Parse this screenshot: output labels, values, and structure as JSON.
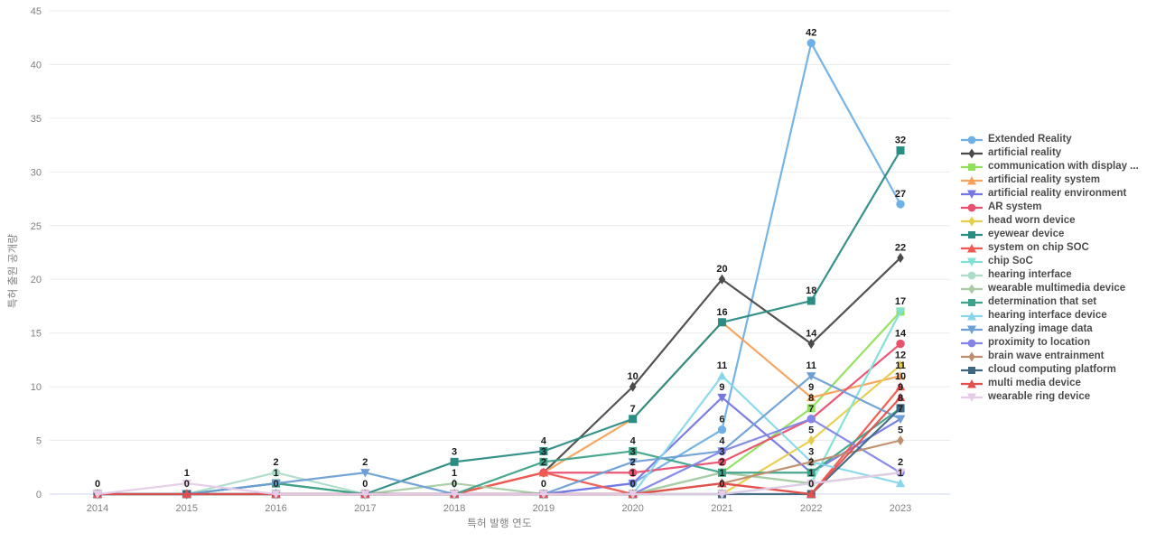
{
  "chart_data": {
    "type": "line",
    "title": "",
    "xlabel": "특허 발행 연도",
    "ylabel": "특허 출원 공개량",
    "x": [
      2014,
      2015,
      2016,
      2017,
      2018,
      2019,
      2020,
      2021,
      2022,
      2023
    ],
    "ylim": [
      0,
      45
    ],
    "y_ticks": [
      0,
      5,
      10,
      15,
      20,
      25,
      30,
      35,
      40,
      45
    ],
    "grid": true,
    "legend_position": "right",
    "point_labels": true,
    "series": [
      {
        "name": "Extended Reality",
        "color": "#6fb0e6",
        "marker": "circle",
        "values": [
          0,
          0,
          0,
          0,
          0,
          0,
          1,
          6,
          42,
          27
        ]
      },
      {
        "name": "artificial reality",
        "color": "#4a4a4a",
        "marker": "diamond",
        "values": [
          0,
          0,
          0,
          0,
          0,
          2,
          10,
          20,
          14,
          22
        ]
      },
      {
        "name": "communication with display ...",
        "color": "#90e05b",
        "marker": "square",
        "values": [
          0,
          0,
          0,
          0,
          0,
          0,
          0,
          2,
          8,
          17
        ]
      },
      {
        "name": "artificial reality system",
        "color": "#f8a25b",
        "marker": "triangle-up",
        "values": [
          0,
          0,
          0,
          0,
          0,
          2,
          7,
          16,
          9,
          11
        ]
      },
      {
        "name": "artificial reality environment",
        "color": "#7577e3",
        "marker": "triangle-down",
        "values": [
          0,
          0,
          0,
          0,
          0,
          0,
          1,
          9,
          2,
          7
        ]
      },
      {
        "name": "AR system",
        "color": "#e8506e",
        "marker": "circle",
        "values": [
          0,
          0,
          0,
          0,
          0,
          2,
          2,
          3,
          7,
          14
        ]
      },
      {
        "name": "head worn device",
        "color": "#e7cd4c",
        "marker": "diamond",
        "values": [
          0,
          0,
          0,
          0,
          0,
          0,
          0,
          0,
          5,
          12
        ]
      },
      {
        "name": "eyewear device",
        "color": "#2b8c84",
        "marker": "square",
        "values": [
          0,
          0,
          1,
          0,
          3,
          4,
          7,
          16,
          18,
          32
        ]
      },
      {
        "name": "system on chip SOC",
        "color": "#f05a50",
        "marker": "triangle-up",
        "values": [
          0,
          0,
          0,
          0,
          0,
          2,
          0,
          1,
          0,
          10
        ]
      },
      {
        "name": "chip SoC",
        "color": "#80e0d3",
        "marker": "triangle-down",
        "values": [
          0,
          0,
          0,
          0,
          0,
          0,
          0,
          0,
          1,
          17
        ]
      },
      {
        "name": "hearing interface",
        "color": "#acdcc8",
        "marker": "circle",
        "values": [
          0,
          0,
          2,
          0,
          0,
          0,
          0,
          2,
          1,
          2
        ]
      },
      {
        "name": "wearable multimedia device",
        "color": "#a8cba4",
        "marker": "diamond",
        "values": [
          0,
          0,
          0,
          0,
          1,
          0,
          0,
          2,
          1,
          2
        ]
      },
      {
        "name": "determination that set",
        "color": "#3fa389",
        "marker": "square",
        "values": [
          0,
          0,
          1,
          0,
          0,
          3,
          4,
          2,
          2,
          8
        ]
      },
      {
        "name": "hearing interface device",
        "color": "#87d7ec",
        "marker": "triangle-up",
        "values": [
          0,
          0,
          0,
          0,
          0,
          0,
          0,
          11,
          3,
          1
        ]
      },
      {
        "name": "analyzing image data",
        "color": "#6e9fd4",
        "marker": "triangle-down",
        "values": [
          0,
          0,
          1,
          2,
          0,
          0,
          3,
          4,
          11,
          7
        ]
      },
      {
        "name": "proximity to location",
        "color": "#8285e6",
        "marker": "circle",
        "values": [
          0,
          0,
          0,
          0,
          0,
          0,
          0,
          4,
          7,
          2
        ]
      },
      {
        "name": "brain wave entrainment",
        "color": "#be8e6f",
        "marker": "diamond",
        "values": [
          0,
          0,
          0,
          0,
          0,
          0,
          0,
          1,
          3,
          5
        ]
      },
      {
        "name": "cloud computing platform",
        "color": "#3d6780",
        "marker": "square",
        "values": [
          0,
          0,
          0,
          0,
          0,
          0,
          0,
          0,
          0,
          8
        ]
      },
      {
        "name": "multi media device",
        "color": "#e0504d",
        "marker": "triangle-up",
        "values": [
          0,
          0,
          0,
          0,
          0,
          0,
          0,
          1,
          0,
          9
        ]
      },
      {
        "name": "wearable ring device",
        "color": "#e6cbe8",
        "marker": "triangle-down",
        "values": [
          0,
          1,
          0,
          0,
          0,
          0,
          0,
          0,
          1,
          2
        ]
      }
    ],
    "style": {
      "grid_color": "#ebebeb",
      "zero_line_color": "#ccd6eb",
      "tick_label_color": "#808080",
      "point_label_color": "#1a1a1a"
    }
  }
}
